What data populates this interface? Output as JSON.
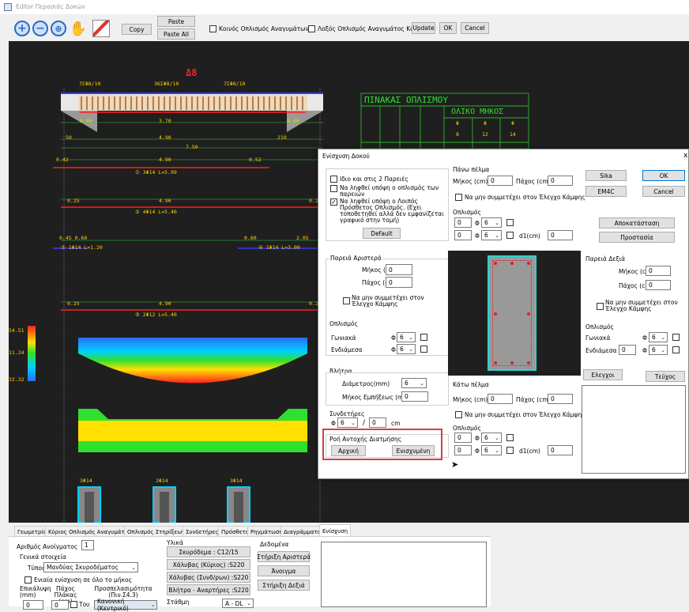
{
  "window": {
    "title": "Editor Περασιάς Δοκών"
  },
  "toolbar": {
    "copy": "Copy",
    "paste": "Paste",
    "paste_all": "Paste All",
    "cb1": "Κοινός Οπλισμός Αναγυμάτων",
    "cb2": "Λοξός Οπλισμός Αναγυμάτος Κάτω",
    "update": "Update",
    "ok": "OK",
    "cancel": "Cancel"
  },
  "cad": {
    "title": "Δ8",
    "top_labels": [
      "7ΣΦ8/10",
      "36ΣΦ8/10",
      "7ΣΦ8/10"
    ],
    "dims1": [
      "0.60",
      "3.70",
      "0.60"
    ],
    "dims2": [
      "50",
      "4.90",
      "210"
    ],
    "dim_total": "7.50",
    "bar1": {
      "l": "0.42",
      "m": "4.90",
      "r": "0.52",
      "t": "① 3Φ14 L=5.99"
    },
    "bar2": {
      "l": "0.25",
      "m": "4.90",
      "r": "0.25",
      "t": "② 4Φ14 L=5.40"
    },
    "bar3": {
      "l": "0.45 0.60",
      "t": "③ 1Φ14 L=1.20",
      "r1": "0.60",
      "r2": "2.05",
      "t2": "④ 1Φ14 L=3.00"
    },
    "bar5": {
      "l": "0.25",
      "m": "4.90",
      "r": "0.25",
      "t": "⑤ 2Φ12 L=5.40"
    },
    "legend": [
      "54.51",
      "11.24",
      "32.32"
    ],
    "bottom_labels": [
      "3Φ14",
      "2Φ14",
      "3Φ14"
    ],
    "table": {
      "title": "ΠΙΝΑΚΑΣ ΟΠΛΙΣΜΟΥ",
      "sub": "ΟΛΙΚΟ ΜΗΚΟΣ",
      "cols": [
        "Φ",
        "Φ",
        "Φ"
      ],
      "vals": [
        "8",
        "12",
        "14"
      ]
    }
  },
  "dialog": {
    "title": "Ενίσχυση Δοκού",
    "close": "x",
    "left": {
      "cb1": "Ιδιο και στις 2 Παρειές",
      "cb2": "Να ληφθεί υπόψη ο οπλισμός των παρειών",
      "cb3": "Να ληφθεί υπόψη ο Λοιπός Πρόσθετος Οπλισμός. (Εχει τοποθετηθεί αλλά δεν εμφανίζεται γραφικό στην τομή)",
      "default": "Default",
      "side_left": "Παρειά Αριστερά",
      "length": "Μήκος (cm)",
      "length_v": "0",
      "thick": "Πάχος (cm)",
      "thick_v": "0",
      "exclude": "Να μην συμμετέχει στον Έλεγχο Κάμψης",
      "rebar": "Οπλισμός",
      "corner": "Γωνιακά",
      "mid": "Ενδιάμεσα",
      "phi": "Φ",
      "six": "6",
      "bolts": "Βλήτρα",
      "diam": "Διάμετρος(mm)",
      "diam_v": "6",
      "embed": "Μήκος Εμπήξεως (mm)",
      "embed_v": "0",
      "stirrups": "Συνδετήρες",
      "stir_n": "6",
      "stir_s": "0",
      "cm": "cm",
      "shear": "Ροή Αντοχής Διατμήσης",
      "initial": "Αρχική",
      "strengthened": "Ενισχυμένη"
    },
    "mid": {
      "top": "Πάνω πέλμα",
      "length": "Μήκος (cm)",
      "length_v": "0",
      "thick": "Πάχος (cm)",
      "thick_v": "0",
      "exclude": "Να μην συμμετέχει στον Έλεγχο Κάμψης",
      "rebar": "Οπλισμός",
      "r1": "0",
      "r2": "0",
      "six": "6",
      "phi": "Φ",
      "d1": "d1(cm)",
      "d1_v": "0",
      "bottom": "Κάτω πέλμα",
      "b_length_v": "0",
      "b_thick_v": "0",
      "b_r1": "0",
      "b_r2": "0",
      "b_d1_v": "0"
    },
    "right": {
      "sika": "Sika",
      "ok": "OK",
      "em4c": "EM4C",
      "cancel": "Cancel",
      "restore": "Αποκατάσταση",
      "protect": "Προστασία",
      "side_right": "Παρειά Δεξιά",
      "length": "Μήκος (cm)",
      "length_v": "0",
      "thick": "Πάχος (cm)",
      "thick_v": "0",
      "exclude": "Να μην συμμετέχει στον Έλεγχο Κάμψης",
      "rebar": "Οπλισμός",
      "corner": "Γωνιακά",
      "mid": "Ενδιάμεσα",
      "mid_v": "0",
      "phi": "Φ",
      "six": "6",
      "check": "Ελεγχοι",
      "report": "Τεύχος"
    }
  },
  "tabs": [
    "Γεωμετρία",
    "Κύριος Οπλισμός Αναγυμάτος",
    "Οπλισμός Στηρίξεων",
    "Συνδετήρες",
    "Πρόσθετα",
    "Ρηγμάτωση",
    "Διαγράμματα",
    "Ενίσχυση"
  ],
  "bottom": {
    "span_lbl": "Αριθμός Ανοίγματος",
    "span_v": "1",
    "general": "Γενικά στοιχεία",
    "type": "Τύπος",
    "type_v": "Μανδύας Σκυροδέματος",
    "all": "Ενιαία ενίσχυση σε όλο το μήκος",
    "cover": "Επικάλυψη (mm)",
    "thick": "Πάχος Πλάκας (cm)",
    "prot": "Προσπελασιμότητα (Πιν.Σ4.3)",
    "cover_v": "0",
    "thick_v": "0",
    "tau": "Του",
    "prot_v": "Κανονική (Κεντρικό)",
    "materials": "Υλικά",
    "concrete": "Σκυρόδεμα : C12/15",
    "steel1": "Χάλυβας (Κύριος) :S220",
    "steel2": "Χάλυβας (Συνδ/ρων) :S220",
    "steel3": "Βλήτρα - Αναρτήρες :S220",
    "level": "Στάθμη",
    "level_v": "A - DL",
    "data": "Δεδομένα",
    "sup_l": "Στήριξη Αριστερά",
    "open": "Άνοιγμα",
    "sup_r": "Στήριξη Δεξιά"
  }
}
